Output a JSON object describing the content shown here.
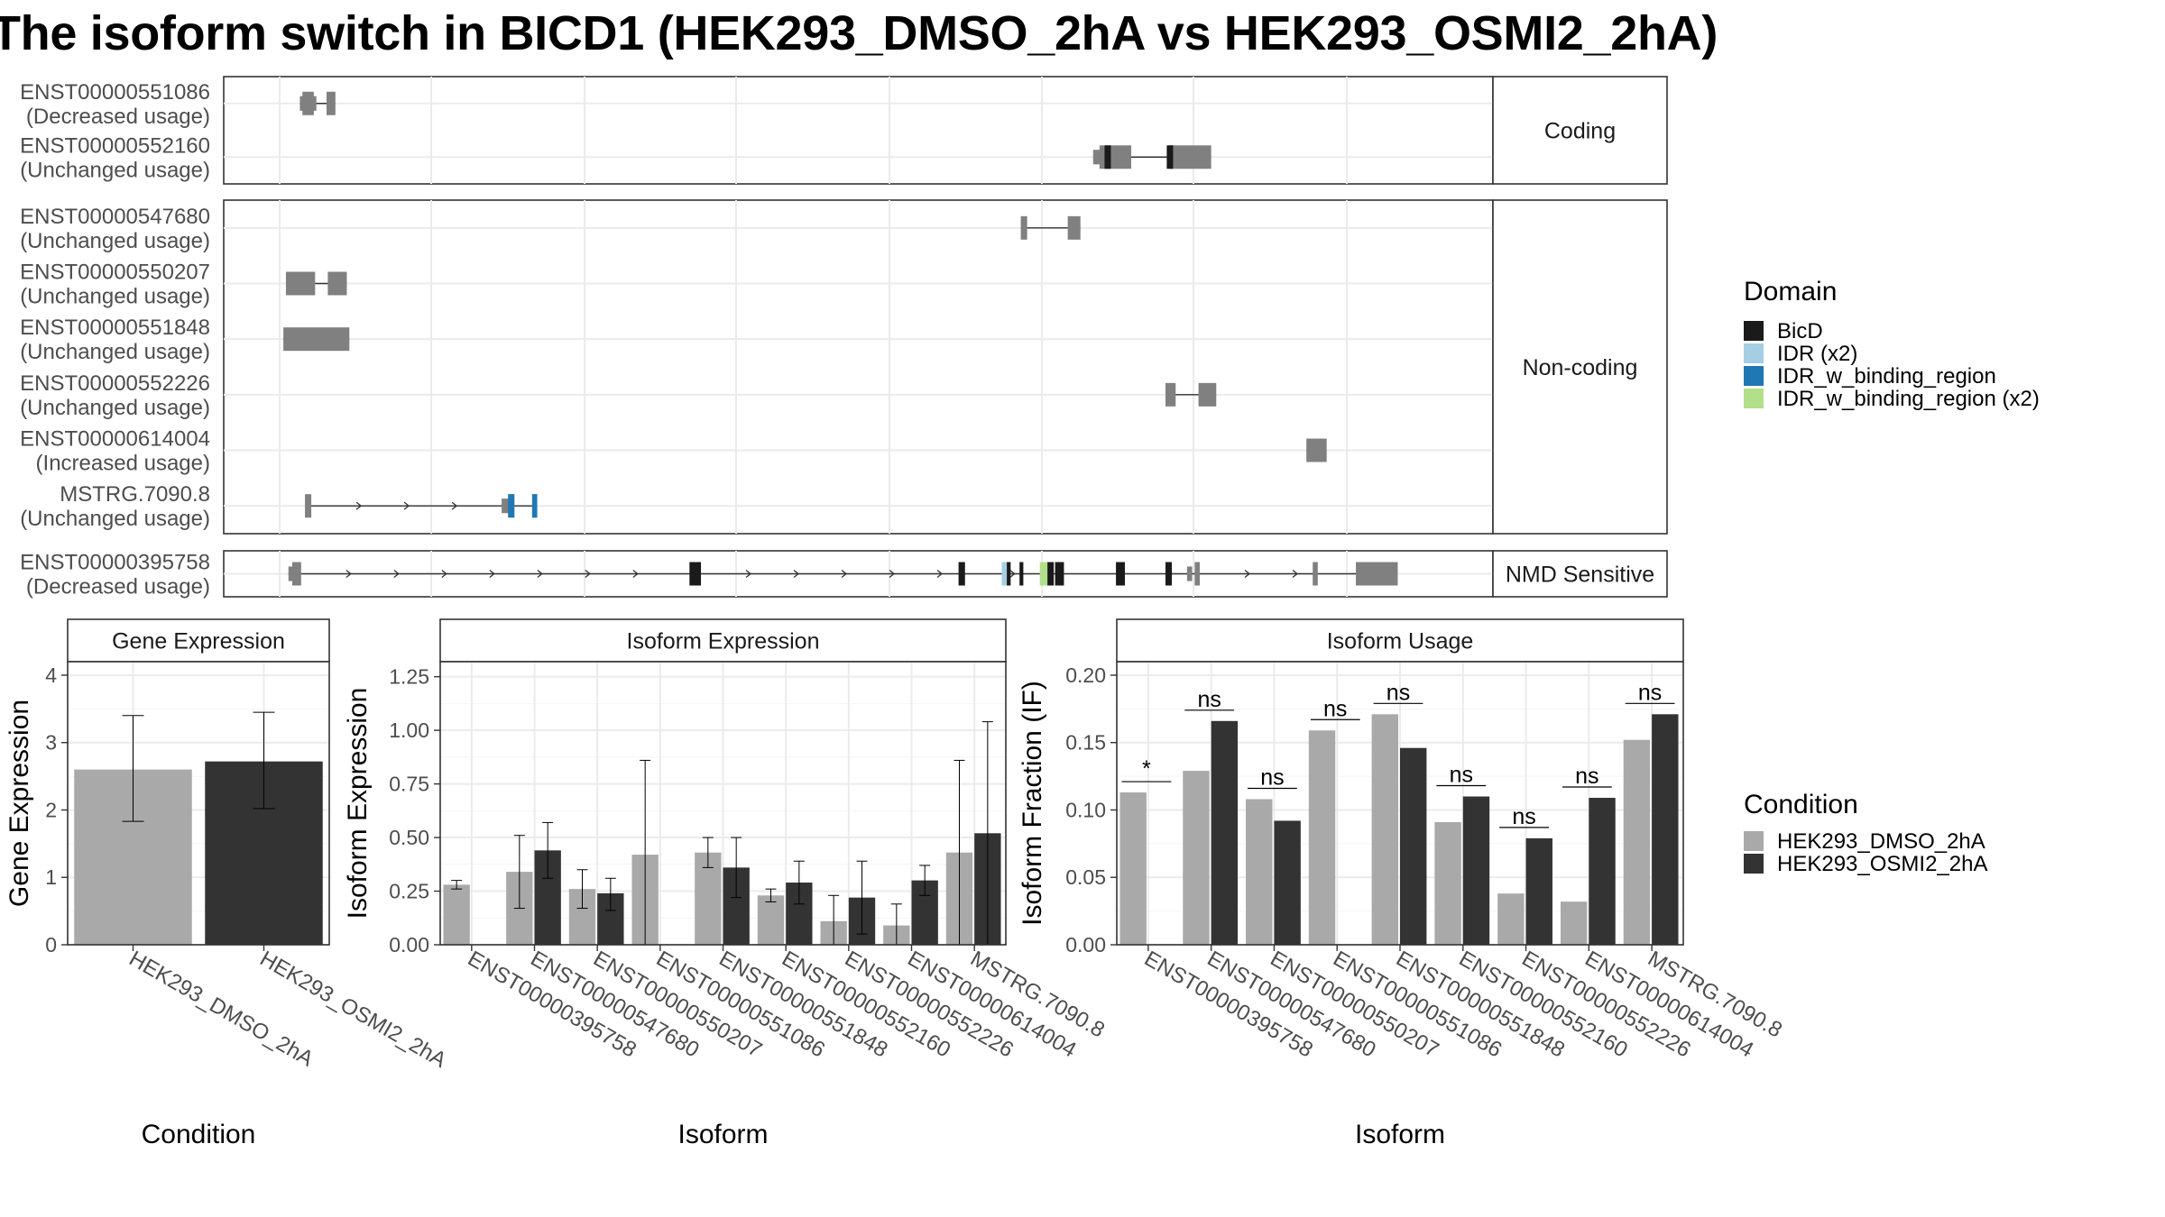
{
  "title": "The isoform switch in BICD1 (HEK293_DMSO_2hA vs HEK293_OSMI2_2hA)",
  "chart_data": [
    {
      "type": "transcript_structure",
      "x_range": [
        0,
        100
      ],
      "legend": {
        "title": "Domain",
        "placement": "right",
        "items": [
          {
            "name": "BicD",
            "color": "#1a1a1a"
          },
          {
            "name": "IDR (x2)",
            "color": "#a6cee3"
          },
          {
            "name": "IDR_w_binding_region",
            "color": "#1f78b4"
          },
          {
            "name": "IDR_w_binding_region (x2)",
            "color": "#b2df8a"
          }
        ]
      },
      "panels": [
        {
          "label": "Coding",
          "transcripts": [
            {
              "id": "ENST00000551086",
              "usage": "(Decreased usage)",
              "exons": [
                [
                  6.2,
                  7.1
                ],
                [
                  8.1,
                  8.8
                ]
              ],
              "thin_exons": [
                [
                  6.0,
                  6.3
                ],
                [
                  7.0,
                  7.3
                ]
              ],
              "domains": []
            },
            {
              "id": "ENST00000552160",
              "usage": "(Unchanged usage)",
              "exons": [
                [
                  69.0,
                  71.5
                ],
                [
                  74.5,
                  77.8
                ]
              ],
              "thin_exons": [
                [
                  68.5,
                  69.2
                ]
              ],
              "domains": [
                {
                  "name": "BicD",
                  "ranges": [
                    [
                      69.4,
                      69.9
                    ],
                    [
                      74.3,
                      74.8
                    ]
                  ]
                }
              ]
            }
          ]
        },
        {
          "label": "Non-coding",
          "transcripts": [
            {
              "id": "ENST00000547680",
              "usage": "(Unchanged usage)",
              "exons": [
                [
                  62.8,
                  63.3
                ],
                [
                  66.5,
                  67.5
                ]
              ],
              "thin_exons": [],
              "domains": []
            },
            {
              "id": "ENST00000550207",
              "usage": "(Unchanged usage)",
              "exons": [
                [
                  4.9,
                  7.2
                ],
                [
                  8.2,
                  9.7
                ]
              ],
              "thin_exons": [],
              "domains": []
            },
            {
              "id": "ENST00000551848",
              "usage": "(Unchanged usage)",
              "exons": [
                [
                  4.7,
                  9.9
                ]
              ],
              "thin_exons": [],
              "domains": []
            },
            {
              "id": "ENST00000552226",
              "usage": "(Unchanged usage)",
              "exons": [
                [
                  74.2,
                  75.0
                ],
                [
                  76.8,
                  78.2
                ]
              ],
              "thin_exons": [],
              "domains": []
            },
            {
              "id": "ENST00000614004",
              "usage": "(Increased usage)",
              "exons": [
                [
                  85.3,
                  86.9
                ]
              ],
              "thin_exons": [],
              "domains": []
            },
            {
              "id": "MSTRG.7090.8",
              "usage": "(Unchanged usage)",
              "exons": [
                [
                  6.4,
                  6.9
                ],
                [
                  22.5,
                  22.9
                ],
                [
                  24.3,
                  24.7
                ]
              ],
              "thin_exons": [
                [
                  21.9,
                  22.6
                ]
              ],
              "domains": [
                {
                  "name": "IDR_w_binding_region",
                  "ranges": [
                    [
                      22.4,
                      22.9
                    ],
                    [
                      24.3,
                      24.7
                    ]
                  ]
                }
              ]
            }
          ]
        },
        {
          "label": "NMD Sensitive",
          "transcripts": [
            {
              "id": "ENST00000395758",
              "usage": "(Decreased usage)",
              "exons": [
                [
                  5.4,
                  6.1
                ],
                [
                  36.7,
                  37.6
                ],
                [
                  57.9,
                  58.4
                ],
                [
                  70.3,
                  71.0
                ],
                [
                  74.2,
                  74.7
                ],
                [
                  76.5,
                  76.9
                ],
                [
                  85.8,
                  86.2
                ],
                [
                  89.2,
                  92.5
                ]
              ],
              "thin_exons": [
                [
                  5.1,
                  5.6
                ],
                [
                  75.9,
                  76.3
                ]
              ],
              "domains": [
                {
                  "name": "BicD",
                  "ranges": [
                    [
                      36.7,
                      37.6
                    ],
                    [
                      57.9,
                      58.4
                    ],
                    [
                      65.5,
                      66.2
                    ],
                    [
                      70.3,
                      71.0
                    ],
                    [
                      74.2,
                      74.7
                    ]
                  ]
                },
                {
                  "name": "IDR (x2)",
                  "ranges": [
                    [
                      61.3,
                      61.9
                    ]
                  ]
                },
                {
                  "name": "BicD",
                  "ranges": [
                    [
                      61.7,
                      62.0
                    ],
                    [
                      62.7,
                      63.0
                    ]
                  ]
                },
                {
                  "name": "IDR_w_binding_region (x2)",
                  "ranges": [
                    [
                      64.3,
                      65.2
                    ]
                  ]
                },
                {
                  "name": "BicD",
                  "ranges": [
                    [
                      64.9,
                      65.4
                    ]
                  ]
                }
              ]
            }
          ]
        }
      ]
    },
    {
      "type": "bar",
      "title": "Gene Expression",
      "xlabel": "Condition",
      "ylabel": "Gene Expression",
      "ylim": [
        0,
        4.2
      ],
      "yticks": [
        "0",
        "1",
        "2",
        "3",
        "4"
      ],
      "categories": [
        "HEK293_DMSO_2hA",
        "HEK293_OSMI2_2hA"
      ],
      "values": [
        2.6,
        2.72
      ],
      "err_low": [
        1.83,
        2.02
      ],
      "err_high": [
        3.4,
        3.45
      ],
      "colors": [
        "#a9a9a9",
        "#333333"
      ]
    },
    {
      "type": "bar",
      "title": "Isoform Expression",
      "xlabel": "Isoform",
      "ylabel": "Isoform Expression",
      "ylim": [
        0,
        1.32
      ],
      "yticks": [
        "0.00",
        "0.25",
        "0.50",
        "0.75",
        "1.00",
        "1.25"
      ],
      "categories": [
        "ENST00000395758",
        "ENST00000547680",
        "ENST00000550207",
        "ENST00000551086",
        "ENST00000551848",
        "ENST00000552160",
        "ENST00000552226",
        "ENST00000614004",
        "MSTRG.7090.8"
      ],
      "series": [
        {
          "name": "HEK293_DMSO_2hA",
          "color": "#a9a9a9",
          "values": [
            0.28,
            0.34,
            0.26,
            0.42,
            0.43,
            0.23,
            0.11,
            0.09,
            0.43
          ],
          "err_low": [
            0.26,
            0.17,
            0.17,
            0.0,
            0.36,
            0.2,
            0.0,
            0.0,
            0.0
          ],
          "err_high": [
            0.3,
            0.51,
            0.35,
            0.86,
            0.5,
            0.26,
            0.23,
            0.19,
            0.86
          ]
        },
        {
          "name": "HEK293_OSMI2_2hA",
          "color": "#333333",
          "values": [
            0.0,
            0.44,
            0.24,
            0.0,
            0.36,
            0.29,
            0.22,
            0.3,
            0.52
          ],
          "err_low": [
            0.0,
            0.31,
            0.16,
            0.0,
            0.22,
            0.19,
            0.05,
            0.23,
            0.0
          ],
          "err_high": [
            0.0,
            0.57,
            0.31,
            0.0,
            0.5,
            0.39,
            0.39,
            0.37,
            1.04
          ]
        }
      ]
    },
    {
      "type": "bar",
      "title": "Isoform Usage",
      "xlabel": "Isoform",
      "ylabel": "Isoform Fraction (IF)",
      "ylim": [
        0,
        0.21
      ],
      "yticks": [
        "0.00",
        "0.05",
        "0.10",
        "0.15",
        "0.20"
      ],
      "categories": [
        "ENST00000395758",
        "ENST00000547680",
        "ENST00000550207",
        "ENST00000551086",
        "ENST00000551848",
        "ENST00000552160",
        "ENST00000552226",
        "ENST00000614004",
        "MSTRG.7090.8"
      ],
      "significance": [
        "*",
        "ns",
        "ns",
        "ns",
        "ns",
        "ns",
        "ns",
        "ns",
        "ns"
      ],
      "series": [
        {
          "name": "HEK293_DMSO_2hA",
          "color": "#a9a9a9",
          "values": [
            0.113,
            0.129,
            0.108,
            0.159,
            0.171,
            0.091,
            0.038,
            0.032,
            0.152
          ]
        },
        {
          "name": "HEK293_OSMI2_2hA",
          "color": "#333333",
          "values": [
            0.0,
            0.166,
            0.092,
            0.0,
            0.146,
            0.11,
            0.079,
            0.109,
            0.171
          ]
        }
      ]
    }
  ],
  "condition_legend": {
    "title": "Condition",
    "items": [
      {
        "name": "HEK293_DMSO_2hA",
        "color": "#a9a9a9"
      },
      {
        "name": "HEK293_OSMI2_2hA",
        "color": "#333333"
      }
    ]
  }
}
